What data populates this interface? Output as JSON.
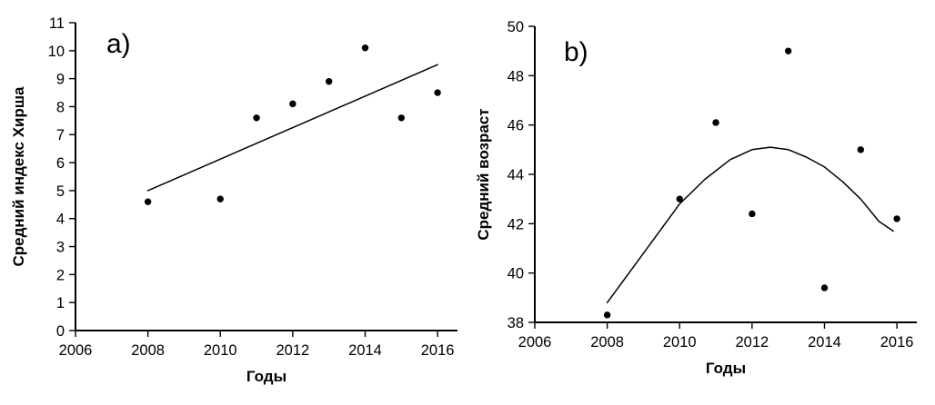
{
  "figure": {
    "background": "#ffffff",
    "axis_color": "#000000",
    "text_color": "#000000"
  },
  "chart_data": [
    {
      "type": "scatter",
      "panel_label": "a)",
      "xlabel": "Годы",
      "ylabel": "Средний индекс Хирша",
      "xlim": [
        2006,
        2016.55
      ],
      "ylim": [
        0,
        11
      ],
      "x_ticks": [
        2006,
        2008,
        2010,
        2012,
        2014,
        2016
      ],
      "y_ticks": [
        0,
        1,
        2,
        3,
        4,
        5,
        6,
        7,
        8,
        9,
        10,
        11
      ],
      "grid": false,
      "legend": "none",
      "marker_color": "#000000",
      "line_color": "#000000",
      "points": {
        "x": [
          2008,
          2010,
          2011,
          2012,
          2013,
          2014,
          2015,
          2016
        ],
        "y": [
          4.6,
          4.7,
          7.6,
          8.1,
          8.9,
          10.1,
          7.6,
          8.5
        ]
      },
      "trend": {
        "shape": "linear",
        "x": [
          2008,
          2016
        ],
        "y": [
          5.0,
          9.5
        ]
      }
    },
    {
      "type": "scatter",
      "panel_label": "b)",
      "xlabel": "Годы",
      "ylabel": "Средний возраст",
      "xlim": [
        2006,
        2016.55
      ],
      "ylim": [
        38,
        50
      ],
      "x_ticks": [
        2006,
        2008,
        2010,
        2012,
        2014,
        2016
      ],
      "y_ticks": [
        38,
        40,
        42,
        44,
        46,
        48,
        50
      ],
      "grid": false,
      "legend": "none",
      "marker_color": "#000000",
      "line_color": "#000000",
      "points": {
        "x": [
          2008,
          2010,
          2011,
          2012,
          2013,
          2014,
          2015,
          2016
        ],
        "y": [
          38.3,
          43.0,
          46.1,
          42.4,
          49.0,
          39.4,
          45.0,
          42.2
        ]
      },
      "trend": {
        "shape": "quadratic-curve",
        "x": [
          2008,
          2008.6,
          2009.2,
          2010,
          2010.7,
          2011.4,
          2012,
          2012.5,
          2013,
          2013.5,
          2014,
          2014.5,
          2015,
          2015.5,
          2015.9
        ],
        "y": [
          38.8,
          40.0,
          41.2,
          42.8,
          43.8,
          44.6,
          45.0,
          45.1,
          45.0,
          44.7,
          44.3,
          43.7,
          43.0,
          42.1,
          41.7
        ]
      }
    }
  ]
}
